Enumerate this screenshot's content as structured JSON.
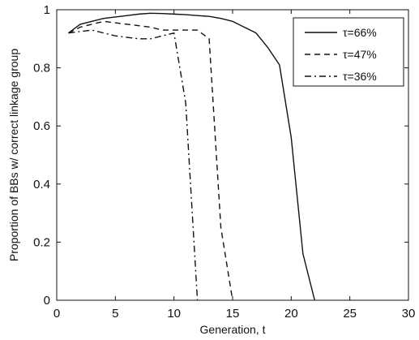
{
  "chart_data": {
    "type": "line",
    "title": "",
    "xlabel": "Generation, t",
    "ylabel": "Proportion of BBs w/ correct linkage group",
    "xlim": [
      0,
      30
    ],
    "ylim": [
      0,
      1
    ],
    "xticks": [
      "0",
      "5",
      "10",
      "15",
      "20",
      "25",
      "30"
    ],
    "yticks": [
      "0",
      "0.2",
      "0.4",
      "0.6",
      "0.8",
      "1"
    ],
    "grid": false,
    "legend_position": "top-right",
    "series": [
      {
        "name": "τ=66%",
        "style": "solid",
        "color": "#111111",
        "x": [
          1,
          2,
          3,
          4,
          5,
          6,
          7,
          8,
          9,
          10,
          11,
          12,
          13,
          14,
          15,
          16,
          17,
          18,
          19,
          20,
          21,
          22
        ],
        "y": [
          0.92,
          0.95,
          0.96,
          0.97,
          0.975,
          0.98,
          0.985,
          0.988,
          0.987,
          0.985,
          0.983,
          0.98,
          0.977,
          0.97,
          0.96,
          0.94,
          0.92,
          0.87,
          0.81,
          0.56,
          0.16,
          0.0
        ]
      },
      {
        "name": "τ=47%",
        "style": "dashed",
        "color": "#111111",
        "x": [
          1,
          2,
          3,
          4,
          5,
          6,
          7,
          8,
          9,
          10,
          11,
          12,
          13,
          14,
          15
        ],
        "y": [
          0.92,
          0.94,
          0.95,
          0.96,
          0.955,
          0.95,
          0.945,
          0.94,
          0.93,
          0.93,
          0.93,
          0.93,
          0.9,
          0.25,
          0.0
        ]
      },
      {
        "name": "τ=36%",
        "style": "dashdot",
        "color": "#111111",
        "x": [
          1,
          2,
          3,
          4,
          5,
          6,
          7,
          8,
          9,
          10,
          11,
          12
        ],
        "y": [
          0.92,
          0.925,
          0.93,
          0.92,
          0.91,
          0.905,
          0.9,
          0.9,
          0.91,
          0.92,
          0.68,
          0.0
        ]
      }
    ]
  }
}
